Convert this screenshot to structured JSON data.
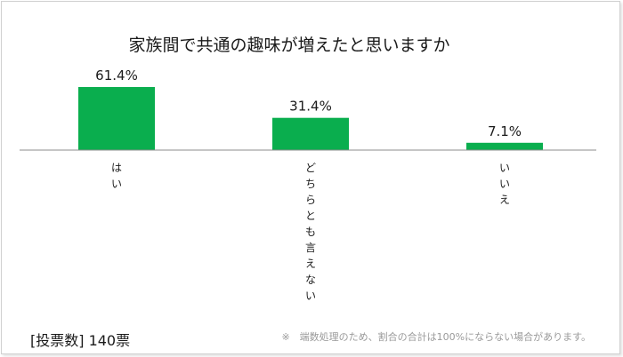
{
  "chart_data": {
    "type": "bar",
    "title": "家族間で共通の趣味が増えたと思いますか",
    "categories": [
      "はい",
      "どちらとも言えない",
      "いいえ"
    ],
    "values": [
      61.4,
      31.4,
      7.1
    ],
    "value_labels": [
      "61.4%",
      "31.4%",
      "7.1%"
    ],
    "unit": "%",
    "ylim": [
      0,
      61.4
    ],
    "grid": false,
    "bar_color": "#0AAE4E",
    "baseline_color": "#8c8c8c"
  },
  "footer": {
    "vote_count": "[投票数] 140票",
    "note": "※　端数処理のため、割合の合計は100%にならない場合があります。"
  }
}
